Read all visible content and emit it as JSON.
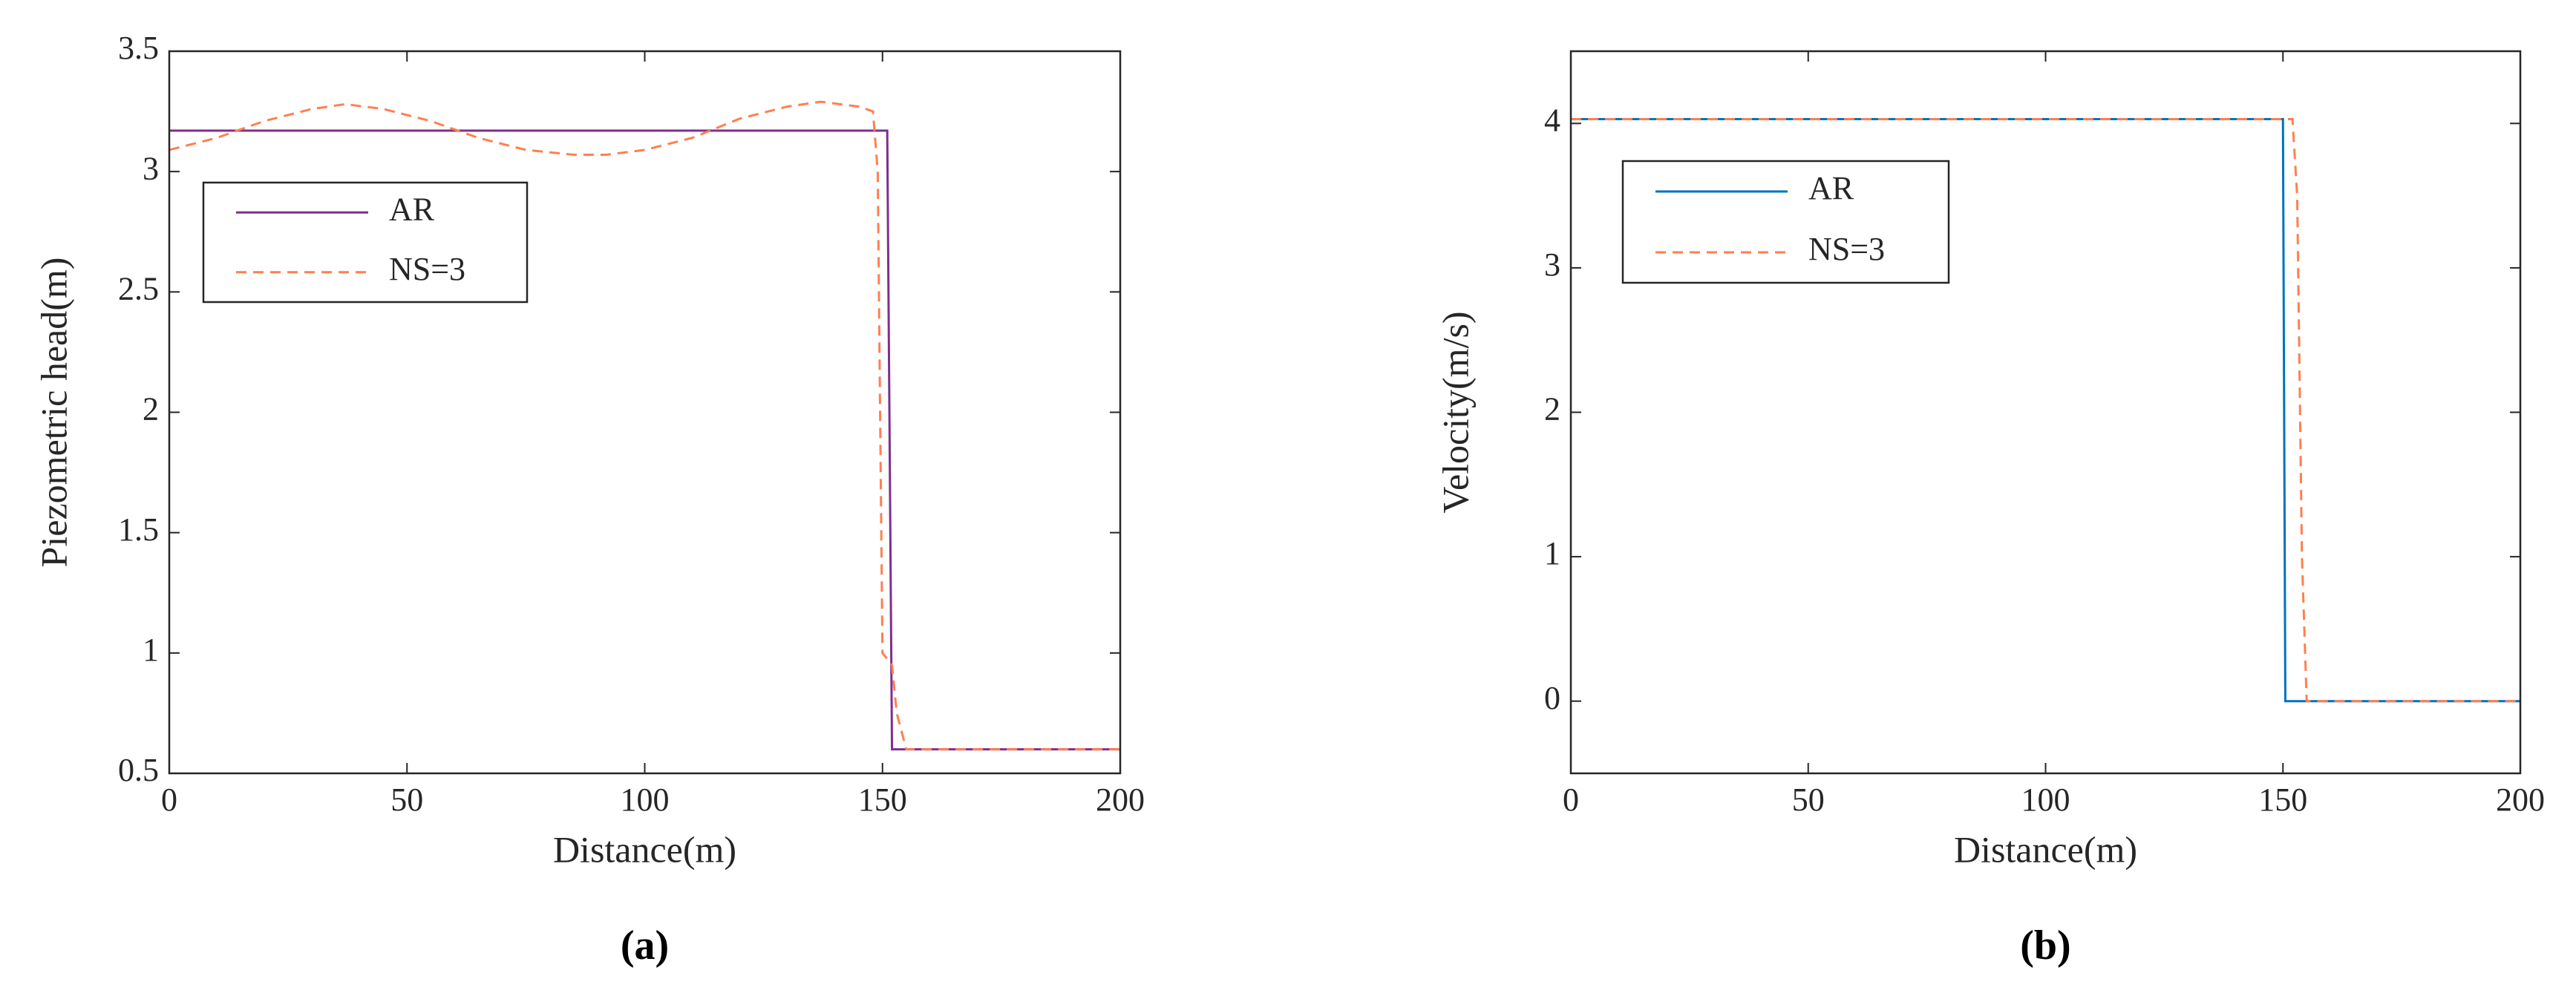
{
  "chart_data": [
    {
      "type": "line",
      "caption": "(a)",
      "x_label": "Distance(m)",
      "y_label": "Piezometric head(m)",
      "xlim": [
        0,
        200
      ],
      "xticks": [
        0,
        50,
        100,
        150,
        200
      ],
      "ylim": [
        0.5,
        3.5
      ],
      "yticks": [
        0.5,
        1,
        1.5,
        2,
        2.5,
        3,
        3.5
      ],
      "legend": "upper left",
      "series": [
        {
          "name": "AR",
          "color": "#7e2f8e",
          "linestyle": "solid",
          "x": [
            0,
            151,
            152,
            200
          ],
          "values": [
            3.17,
            3.17,
            0.6,
            0.6
          ]
        },
        {
          "name": "NS=3",
          "color": "#ff7f50",
          "linestyle": "dashed",
          "x": [
            0,
            10,
            20,
            30,
            37,
            45,
            55,
            65,
            75,
            85,
            92,
            100,
            110,
            120,
            130,
            137,
            145,
            148,
            149,
            150,
            152,
            153,
            155,
            200
          ],
          "values": [
            3.09,
            3.14,
            3.21,
            3.26,
            3.28,
            3.26,
            3.21,
            3.14,
            3.09,
            3.07,
            3.07,
            3.09,
            3.14,
            3.22,
            3.27,
            3.29,
            3.27,
            3.25,
            3.0,
            1.0,
            0.95,
            0.75,
            0.6,
            0.6
          ]
        }
      ]
    },
    {
      "type": "line",
      "caption": "(b)",
      "x_label": "Distance(m)",
      "y_label": "Velocity(m/s)",
      "xlim": [
        0,
        200
      ],
      "xticks": [
        0,
        50,
        100,
        150,
        200
      ],
      "ylim": [
        -0.5,
        4.5
      ],
      "yticks": [
        0,
        1,
        2,
        3,
        4
      ],
      "legend": "upper left",
      "series": [
        {
          "name": "AR",
          "color": "#0072bd",
          "linestyle": "solid",
          "x": [
            0,
            150,
            150.5,
            200
          ],
          "values": [
            4.03,
            4.03,
            0,
            0
          ]
        },
        {
          "name": "NS=3",
          "color": "#ff7f50",
          "linestyle": "dashed",
          "x": [
            0,
            152,
            153,
            154,
            155,
            200
          ],
          "values": [
            4.03,
            4.03,
            3.5,
            1.0,
            0,
            0
          ]
        }
      ]
    }
  ]
}
